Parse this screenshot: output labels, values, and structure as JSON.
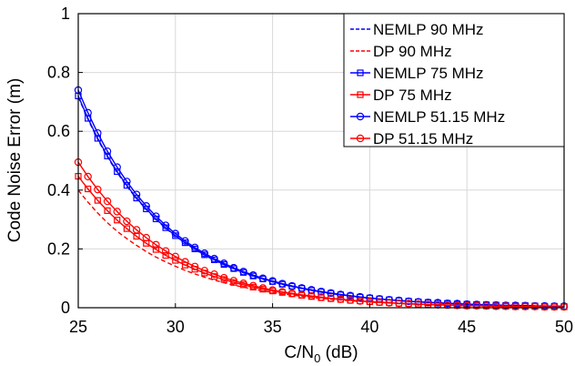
{
  "chart_data": {
    "type": "line",
    "title": "",
    "xlabel_main": "C/N",
    "xlabel_sub": "0",
    "xlabel_tail": " (dB)",
    "ylabel": "Code Noise Error (m)",
    "xlim": [
      25,
      50
    ],
    "ylim": [
      0,
      1
    ],
    "xticks": [
      25,
      30,
      35,
      40,
      45,
      50
    ],
    "yticks": [
      0,
      0.2,
      0.4,
      0.6,
      0.8,
      1
    ],
    "ytick_labels": [
      "0",
      "0.2",
      "0.4",
      "0.6",
      "0.8",
      "1"
    ],
    "grid": true,
    "legend_position": "top-right",
    "x": [
      25,
      25.5,
      26,
      26.5,
      27,
      27.5,
      28,
      28.5,
      29,
      29.5,
      30,
      30.5,
      31,
      31.5,
      32,
      32.5,
      33,
      33.5,
      34,
      34.5,
      35,
      35.5,
      36,
      36.5,
      37,
      37.5,
      38,
      38.5,
      39,
      39.5,
      40,
      40.5,
      41,
      41.5,
      42,
      42.5,
      43,
      43.5,
      44,
      44.5,
      45,
      45.5,
      46,
      46.5,
      47,
      47.5,
      48,
      48.5,
      49,
      49.5,
      50
    ],
    "series": [
      {
        "name": "NEMLP 90 MHz",
        "color": "#0000ff",
        "line": "dashed",
        "marker": "none",
        "values": [
          0.717,
          0.641,
          0.573,
          0.513,
          0.46,
          0.413,
          0.371,
          0.334,
          0.3,
          0.27,
          0.244,
          0.22,
          0.198,
          0.179,
          0.161,
          0.146,
          0.132,
          0.119,
          0.107,
          0.097,
          0.088,
          0.079,
          0.072,
          0.065,
          0.059,
          0.053,
          0.048,
          0.044,
          0.04,
          0.036,
          0.032,
          0.029,
          0.027,
          0.024,
          0.022,
          0.02,
          0.018,
          0.016,
          0.015,
          0.013,
          0.012,
          0.011,
          0.01,
          0.009,
          0.008,
          0.007,
          0.007,
          0.006,
          0.005,
          0.005,
          0.004
        ]
      },
      {
        "name": "DP 90 MHz",
        "color": "#ff0000",
        "line": "dashed",
        "marker": "none",
        "values": [
          0.4,
          0.359,
          0.322,
          0.289,
          0.26,
          0.235,
          0.212,
          0.191,
          0.172,
          0.156,
          0.141,
          0.127,
          0.115,
          0.104,
          0.094,
          0.085,
          0.077,
          0.07,
          0.063,
          0.057,
          0.052,
          0.047,
          0.043,
          0.039,
          0.035,
          0.032,
          0.029,
          0.026,
          0.024,
          0.021,
          0.019,
          0.018,
          0.016,
          0.014,
          0.013,
          0.012,
          0.011,
          0.01,
          0.009,
          0.008,
          0.007,
          0.007,
          0.006,
          0.005,
          0.005,
          0.004,
          0.004,
          0.004,
          0.003,
          0.003,
          0.003
        ]
      },
      {
        "name": "NEMLP 75 MHz",
        "color": "#0000ff",
        "line": "solid",
        "marker": "square",
        "values": [
          0.72,
          0.644,
          0.576,
          0.516,
          0.463,
          0.416,
          0.373,
          0.336,
          0.302,
          0.272,
          0.245,
          0.221,
          0.2,
          0.18,
          0.163,
          0.147,
          0.133,
          0.12,
          0.108,
          0.098,
          0.089,
          0.08,
          0.073,
          0.066,
          0.059,
          0.054,
          0.049,
          0.044,
          0.04,
          0.036,
          0.033,
          0.03,
          0.027,
          0.024,
          0.022,
          0.02,
          0.018,
          0.016,
          0.015,
          0.013,
          0.012,
          0.011,
          0.01,
          0.009,
          0.008,
          0.007,
          0.007,
          0.006,
          0.005,
          0.005,
          0.004
        ]
      },
      {
        "name": "DP 75 MHz",
        "color": "#ff0000",
        "line": "solid",
        "marker": "square",
        "values": [
          0.447,
          0.404,
          0.365,
          0.33,
          0.298,
          0.269,
          0.243,
          0.219,
          0.198,
          0.178,
          0.161,
          0.145,
          0.131,
          0.118,
          0.106,
          0.096,
          0.086,
          0.078,
          0.07,
          0.063,
          0.057,
          0.052,
          0.047,
          0.042,
          0.038,
          0.034,
          0.031,
          0.028,
          0.025,
          0.023,
          0.02,
          0.018,
          0.017,
          0.015,
          0.014,
          0.012,
          0.011,
          0.01,
          0.009,
          0.008,
          0.007,
          0.007,
          0.006,
          0.005,
          0.005,
          0.004,
          0.004,
          0.004,
          0.003,
          0.003,
          0.003
        ]
      },
      {
        "name": "NEMLP 51.15 MHz",
        "color": "#0000ff",
        "line": "solid",
        "marker": "circle",
        "values": [
          0.74,
          0.663,
          0.594,
          0.532,
          0.478,
          0.429,
          0.385,
          0.346,
          0.311,
          0.28,
          0.252,
          0.227,
          0.205,
          0.185,
          0.167,
          0.151,
          0.136,
          0.123,
          0.111,
          0.1,
          0.091,
          0.082,
          0.074,
          0.067,
          0.061,
          0.055,
          0.05,
          0.045,
          0.041,
          0.037,
          0.033,
          0.03,
          0.027,
          0.025,
          0.022,
          0.02,
          0.018,
          0.017,
          0.015,
          0.014,
          0.012,
          0.011,
          0.01,
          0.009,
          0.008,
          0.008,
          0.007,
          0.006,
          0.006,
          0.005,
          0.005
        ]
      },
      {
        "name": "DP 51.15 MHz",
        "color": "#ff0000",
        "line": "solid",
        "marker": "circle",
        "values": [
          0.495,
          0.446,
          0.402,
          0.362,
          0.327,
          0.294,
          0.265,
          0.238,
          0.214,
          0.193,
          0.174,
          0.156,
          0.14,
          0.126,
          0.114,
          0.102,
          0.092,
          0.083,
          0.075,
          0.067,
          0.06,
          0.054,
          0.049,
          0.044,
          0.04,
          0.036,
          0.032,
          0.029,
          0.026,
          0.023,
          0.021,
          0.019,
          0.017,
          0.015,
          0.014,
          0.012,
          0.011,
          0.01,
          0.009,
          0.008,
          0.007,
          0.007,
          0.006,
          0.005,
          0.005,
          0.004,
          0.004,
          0.004,
          0.003,
          0.003,
          0.003
        ]
      }
    ]
  }
}
